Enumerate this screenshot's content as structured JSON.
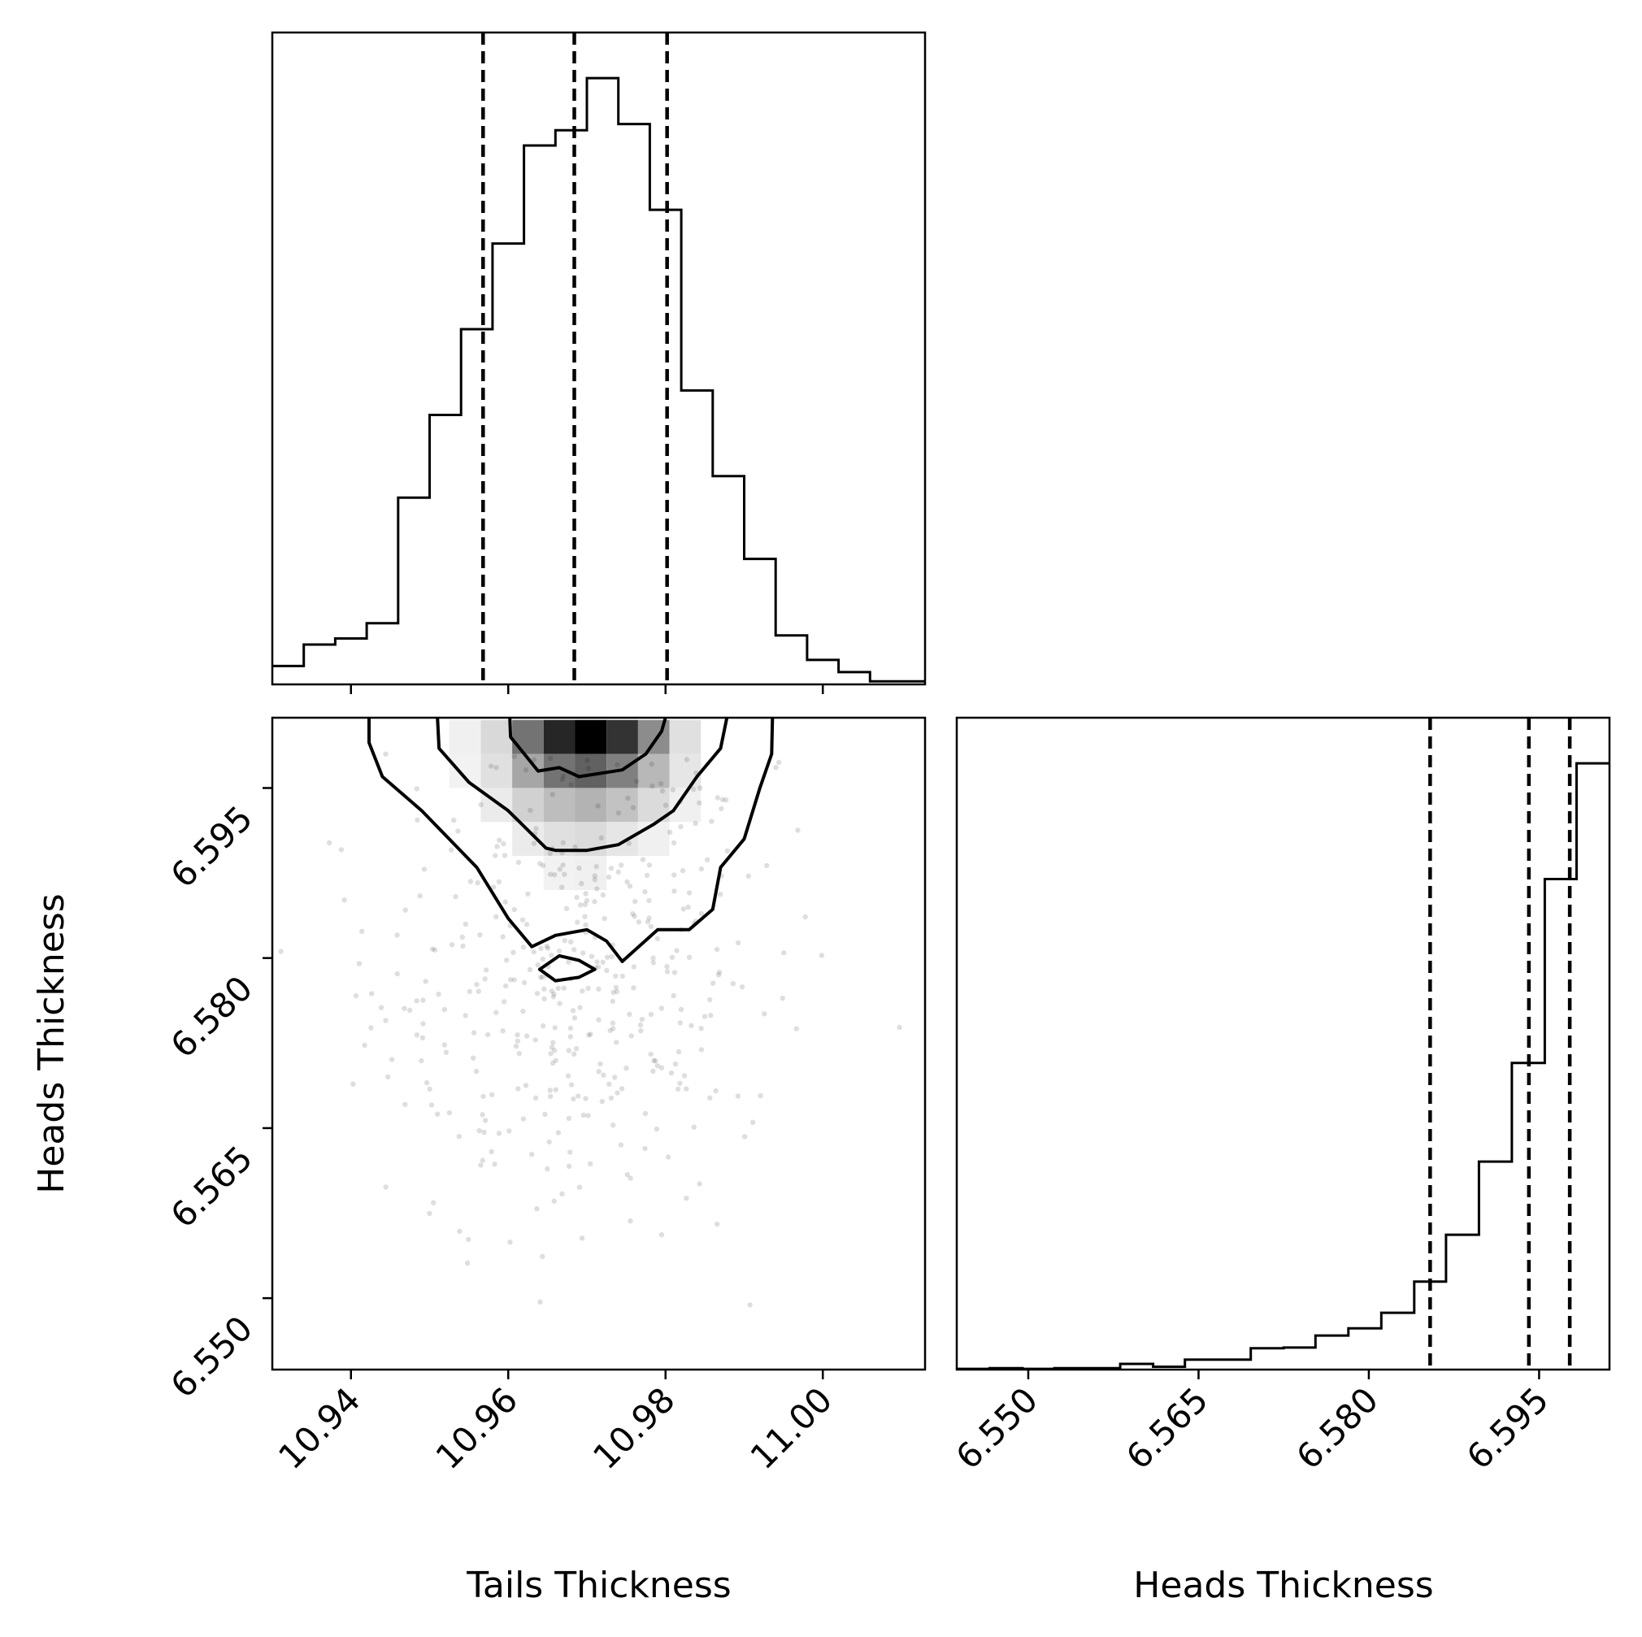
{
  "chart_data": [
    {
      "panel": "top-left",
      "type": "histogram",
      "variable": "Tails Thickness",
      "xlim": [
        10.93,
        11.013
      ],
      "bin_edges": [
        10.93,
        10.934,
        10.938,
        10.942,
        10.946,
        10.95,
        10.954,
        10.958,
        10.962,
        10.966,
        10.97,
        10.974,
        10.978,
        10.982,
        10.986,
        10.99,
        10.994,
        10.998,
        11.002,
        11.006,
        11.01,
        11.013
      ],
      "counts": [
        6,
        13,
        15,
        20,
        61,
        88,
        116,
        144,
        176,
        181,
        198,
        183,
        155,
        96,
        68,
        41,
        16,
        8,
        4,
        1,
        1
      ],
      "quantiles": [
        10.9568,
        10.9684,
        10.9802
      ],
      "y_ticks_shown": false
    },
    {
      "panel": "bottom-left",
      "type": "2d-histogram-contour",
      "x_variable": "Tails Thickness",
      "y_variable": "Heads Thickness",
      "xlim": [
        10.93,
        11.013
      ],
      "ylim": [
        6.5437,
        6.6012
      ],
      "x_ticks": [
        "10.94",
        "10.96",
        "10.98",
        "11.00"
      ],
      "y_ticks": [
        "6.550",
        "6.565",
        "6.580",
        "6.595"
      ],
      "xlabel": "Tails Thickness",
      "ylabel": "Heads Thickness",
      "density_cells": [
        {
          "x": 10.9585,
          "y": 6.5995,
          "v": 0.15
        },
        {
          "x": 10.9625,
          "y": 6.5995,
          "v": 0.55
        },
        {
          "x": 10.9665,
          "y": 6.5995,
          "v": 0.85
        },
        {
          "x": 10.9705,
          "y": 6.5995,
          "v": 1.0
        },
        {
          "x": 10.9745,
          "y": 6.5995,
          "v": 0.8
        },
        {
          "x": 10.9785,
          "y": 6.5995,
          "v": 0.45
        },
        {
          "x": 10.9825,
          "y": 6.5995,
          "v": 0.12
        },
        {
          "x": 10.9545,
          "y": 6.5995,
          "v": 0.06
        },
        {
          "x": 10.9585,
          "y": 6.5965,
          "v": 0.12
        },
        {
          "x": 10.9625,
          "y": 6.5965,
          "v": 0.35
        },
        {
          "x": 10.9665,
          "y": 6.5965,
          "v": 0.55
        },
        {
          "x": 10.9705,
          "y": 6.5965,
          "v": 0.62
        },
        {
          "x": 10.9745,
          "y": 6.5965,
          "v": 0.5
        },
        {
          "x": 10.9785,
          "y": 6.5965,
          "v": 0.28
        },
        {
          "x": 10.9825,
          "y": 6.5965,
          "v": 0.1
        },
        {
          "x": 10.9545,
          "y": 6.5965,
          "v": 0.05
        },
        {
          "x": 10.9585,
          "y": 6.5935,
          "v": 0.08
        },
        {
          "x": 10.9625,
          "y": 6.5935,
          "v": 0.18
        },
        {
          "x": 10.9665,
          "y": 6.5935,
          "v": 0.26
        },
        {
          "x": 10.9705,
          "y": 6.5935,
          "v": 0.3
        },
        {
          "x": 10.9745,
          "y": 6.5935,
          "v": 0.24
        },
        {
          "x": 10.9785,
          "y": 6.5935,
          "v": 0.14
        },
        {
          "x": 10.9825,
          "y": 6.5935,
          "v": 0.06
        },
        {
          "x": 10.9625,
          "y": 6.5905,
          "v": 0.08
        },
        {
          "x": 10.9665,
          "y": 6.5905,
          "v": 0.12
        },
        {
          "x": 10.9705,
          "y": 6.5905,
          "v": 0.14
        },
        {
          "x": 10.9745,
          "y": 6.5905,
          "v": 0.1
        },
        {
          "x": 10.9785,
          "y": 6.5905,
          "v": 0.06
        },
        {
          "x": 10.9665,
          "y": 6.5875,
          "v": 0.05
        },
        {
          "x": 10.9705,
          "y": 6.5875,
          "v": 0.06
        }
      ],
      "contours": [
        {
          "level": "outer",
          "points": [
            [
              10.9423,
              6.6012
            ],
            [
              10.9423,
              6.599
            ],
            [
              10.944,
              6.596
            ],
            [
              10.949,
              6.593
            ],
            [
              10.956,
              6.588
            ],
            [
              10.96,
              6.5835
            ],
            [
              10.963,
              6.581
            ],
            [
              10.966,
              6.582
            ],
            [
              10.97,
              6.5825
            ],
            [
              10.9725,
              6.5815
            ],
            [
              10.9745,
              6.5797
            ],
            [
              10.979,
              6.5825
            ],
            [
              10.983,
              6.5825
            ],
            [
              10.986,
              6.5843
            ],
            [
              10.987,
              6.588
            ],
            [
              10.99,
              6.5905
            ],
            [
              10.992,
              6.595
            ],
            [
              10.9935,
              6.598
            ],
            [
              10.9936,
              6.6012
            ]
          ]
        },
        {
          "level": "middle",
          "points": [
            [
              10.951,
              6.6012
            ],
            [
              10.9512,
              6.5985
            ],
            [
              10.955,
              6.5955
            ],
            [
              10.96,
              6.593
            ],
            [
              10.9648,
              6.5897
            ],
            [
              10.966,
              6.5895
            ],
            [
              10.97,
              6.5895
            ],
            [
              10.974,
              6.59
            ],
            [
              10.9785,
              6.5918
            ],
            [
              10.981,
              6.593
            ],
            [
              10.984,
              6.596
            ],
            [
              10.987,
              6.5985
            ],
            [
              10.9878,
              6.6012
            ]
          ]
        },
        {
          "level": "inner",
          "points": [
            [
              10.9602,
              6.6012
            ],
            [
              10.9603,
              6.5995
            ],
            [
              10.9638,
              6.5965
            ],
            [
              10.9665,
              6.5968
            ],
            [
              10.969,
              6.596
            ],
            [
              10.9745,
              6.5966
            ],
            [
              10.9775,
              6.598
            ],
            [
              10.9795,
              6.6
            ],
            [
              10.98,
              6.6012
            ]
          ]
        },
        {
          "level": "island",
          "closed": true,
          "points": [
            [
              10.964,
              6.579
            ],
            [
              10.966,
              6.578
            ],
            [
              10.969,
              6.5783
            ],
            [
              10.971,
              6.579
            ],
            [
              10.969,
              6.5798
            ],
            [
              10.9665,
              6.5802
            ],
            [
              10.964,
              6.579
            ]
          ]
        }
      ],
      "scatter_region": {
        "x_center": 10.968,
        "x_spread": 0.017,
        "y_center": 6.578,
        "y_spread": 0.012,
        "n": 420
      }
    },
    {
      "panel": "bottom-right",
      "type": "histogram",
      "variable": "Heads Thickness",
      "xlim": [
        6.5437,
        6.6012
      ],
      "x_ticks": [
        "6.550",
        "6.565",
        "6.580",
        "6.595"
      ],
      "xlabel": "Heads Thickness",
      "bin_edges": [
        6.5437,
        6.5466,
        6.5495,
        6.5523,
        6.5552,
        6.5581,
        6.561,
        6.5638,
        6.5667,
        6.5696,
        6.5725,
        6.5753,
        6.5782,
        6.5811,
        6.584,
        6.5868,
        6.5897,
        6.5926,
        6.5955,
        6.5983,
        6.6012
      ],
      "counts": [
        1,
        2,
        1,
        2,
        2,
        8,
        4,
        14,
        14,
        30,
        31,
        48,
        58,
        80,
        124,
        190,
        293,
        432,
        691,
        854
      ],
      "quantiles": [
        6.5854,
        6.5941,
        6.5977
      ],
      "y_ticks_shown": false
    }
  ]
}
